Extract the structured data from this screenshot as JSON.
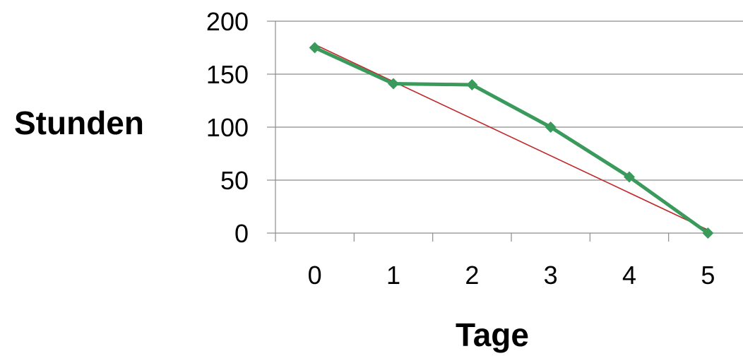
{
  "chart_data": {
    "type": "line",
    "title": "",
    "xlabel": "Tage",
    "ylabel": "Stunden",
    "x": [
      0,
      1,
      2,
      3,
      4,
      5
    ],
    "xlim": [
      -0.5,
      5.5
    ],
    "ylim": [
      0,
      200
    ],
    "x_ticks": [
      0,
      1,
      2,
      3,
      4,
      5
    ],
    "y_ticks": [
      0,
      50,
      100,
      150,
      200
    ],
    "grid": "horizontal",
    "legend": "none",
    "series": [
      {
        "values": [
          175,
          141,
          140,
          100,
          53,
          0
        ],
        "color": "#3a9a5b",
        "marker": "diamond"
      }
    ],
    "reference_line": {
      "from": [
        0,
        178
      ],
      "to": [
        5,
        3
      ],
      "color": "#c0282a"
    }
  }
}
